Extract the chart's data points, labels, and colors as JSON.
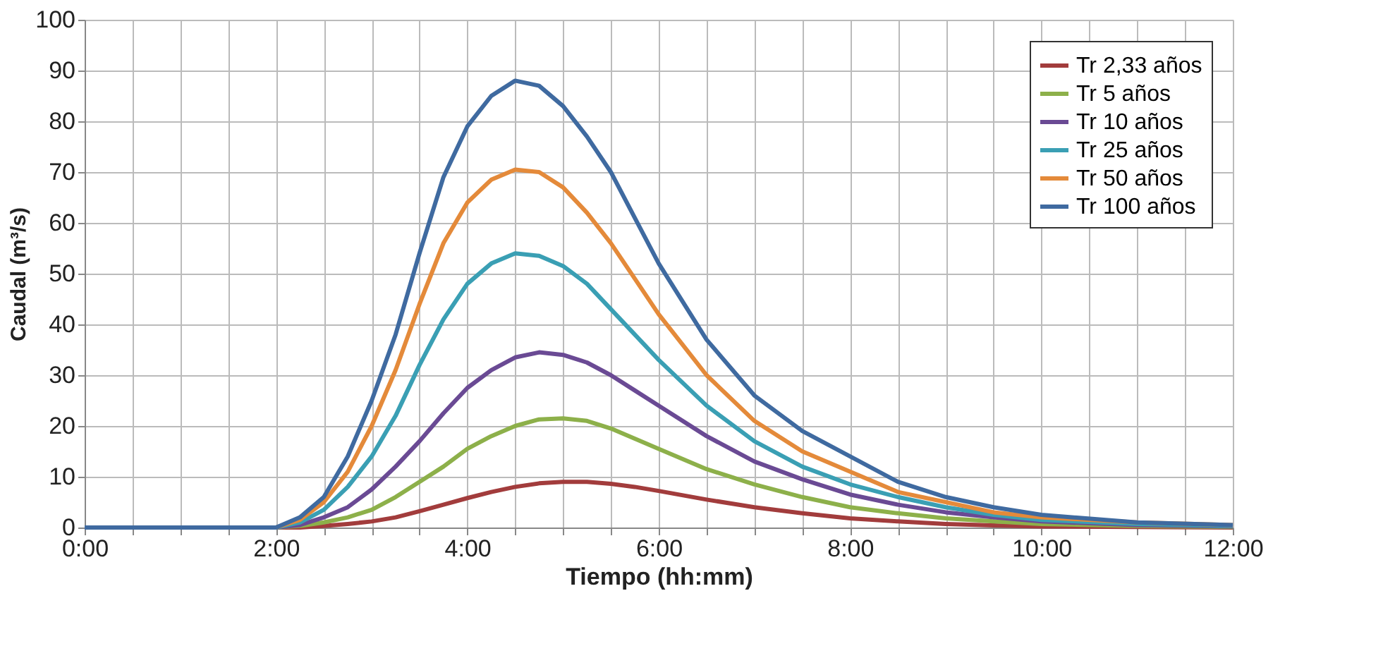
{
  "chart_data": {
    "type": "line",
    "xlabel": "Tiempo (hh:mm)",
    "ylabel": "Caudal (m³/s)",
    "x": [
      0,
      2,
      2.25,
      2.5,
      2.75,
      3,
      3.25,
      3.5,
      3.75,
      4,
      4.25,
      4.5,
      4.75,
      5,
      5.25,
      5.5,
      5.75,
      6,
      6.5,
      7,
      7.5,
      8,
      8.5,
      9,
      9.5,
      10,
      11,
      12
    ],
    "series": [
      {
        "name": "Tr 2,33 años",
        "color": "#a23c3c",
        "values": [
          0,
          0,
          0,
          0.3,
          0.7,
          1.2,
          2,
          3.2,
          4.5,
          5.8,
          7,
          8,
          8.7,
          9,
          9,
          8.6,
          8,
          7.2,
          5.5,
          4,
          2.8,
          1.8,
          1.2,
          0.7,
          0.4,
          0.2,
          0.1,
          0
        ]
      },
      {
        "name": "Tr 5 años",
        "color": "#8db04a",
        "values": [
          0,
          0,
          0.3,
          1,
          2,
          3.5,
          6,
          9,
          12,
          15.5,
          18,
          20,
          21.3,
          21.5,
          21,
          19.5,
          17.5,
          15.5,
          11.5,
          8.5,
          6,
          4,
          2.8,
          1.8,
          1.2,
          0.7,
          0.3,
          0.1
        ]
      },
      {
        "name": "Tr 10 años",
        "color": "#6a4a94",
        "values": [
          0,
          0,
          0.5,
          2,
          4,
          7.5,
          12,
          17,
          22.5,
          27.5,
          31,
          33.5,
          34.5,
          34,
          32.5,
          30,
          27,
          24,
          18,
          13,
          9.5,
          6.5,
          4.5,
          3,
          2,
          1.2,
          0.5,
          0.2
        ]
      },
      {
        "name": "Tr 25 años",
        "color": "#3a9fb4",
        "values": [
          0,
          0,
          1,
          3.5,
          8,
          14,
          22,
          32,
          41,
          48,
          52,
          54,
          53.5,
          51.5,
          48,
          43,
          38,
          33,
          24,
          17,
          12,
          8.5,
          6,
          4,
          2.5,
          1.5,
          0.7,
          0.3
        ]
      },
      {
        "name": "Tr 50 años",
        "color": "#e48a3a",
        "values": [
          0,
          0,
          1.5,
          5,
          11,
          20,
          31,
          44,
          56,
          64,
          68.5,
          70.5,
          70,
          67,
          62,
          56,
          49,
          42,
          30,
          21,
          15,
          11,
          7,
          5,
          3,
          2,
          1,
          0.5
        ]
      },
      {
        "name": "Tr 100 años",
        "color": "#3f6aa0",
        "values": [
          0,
          0,
          2,
          6,
          14,
          25,
          38,
          54,
          69,
          79,
          85,
          88,
          87,
          83,
          77,
          70,
          61,
          52,
          37,
          26,
          19,
          14,
          9,
          6,
          4,
          2.5,
          1,
          0.5
        ]
      }
    ],
    "xlim": [
      0,
      12
    ],
    "xticks": [
      {
        "value": 0,
        "label": "0:00"
      },
      {
        "value": 0.5,
        "label": null
      },
      {
        "value": 1,
        "label": null
      },
      {
        "value": 1.5,
        "label": null
      },
      {
        "value": 2,
        "label": "2:00"
      },
      {
        "value": 2.5,
        "label": null
      },
      {
        "value": 3,
        "label": null
      },
      {
        "value": 3.5,
        "label": null
      },
      {
        "value": 4,
        "label": "4:00"
      },
      {
        "value": 4.5,
        "label": null
      },
      {
        "value": 5,
        "label": null
      },
      {
        "value": 5.5,
        "label": null
      },
      {
        "value": 6,
        "label": "6:00"
      },
      {
        "value": 6.5,
        "label": null
      },
      {
        "value": 7,
        "label": null
      },
      {
        "value": 7.5,
        "label": null
      },
      {
        "value": 8,
        "label": "8:00"
      },
      {
        "value": 8.5,
        "label": null
      },
      {
        "value": 9,
        "label": null
      },
      {
        "value": 9.5,
        "label": null
      },
      {
        "value": 10,
        "label": "10:00"
      },
      {
        "value": 10.5,
        "label": null
      },
      {
        "value": 11,
        "label": null
      },
      {
        "value": 11.5,
        "label": null
      },
      {
        "value": 12,
        "label": "12:00"
      }
    ],
    "ylim": [
      0,
      100
    ],
    "yticks": [
      0,
      10,
      20,
      30,
      40,
      50,
      60,
      70,
      80,
      90,
      100
    ],
    "grid": true,
    "legend": "top right",
    "marker": "none",
    "line_style": "solid"
  }
}
